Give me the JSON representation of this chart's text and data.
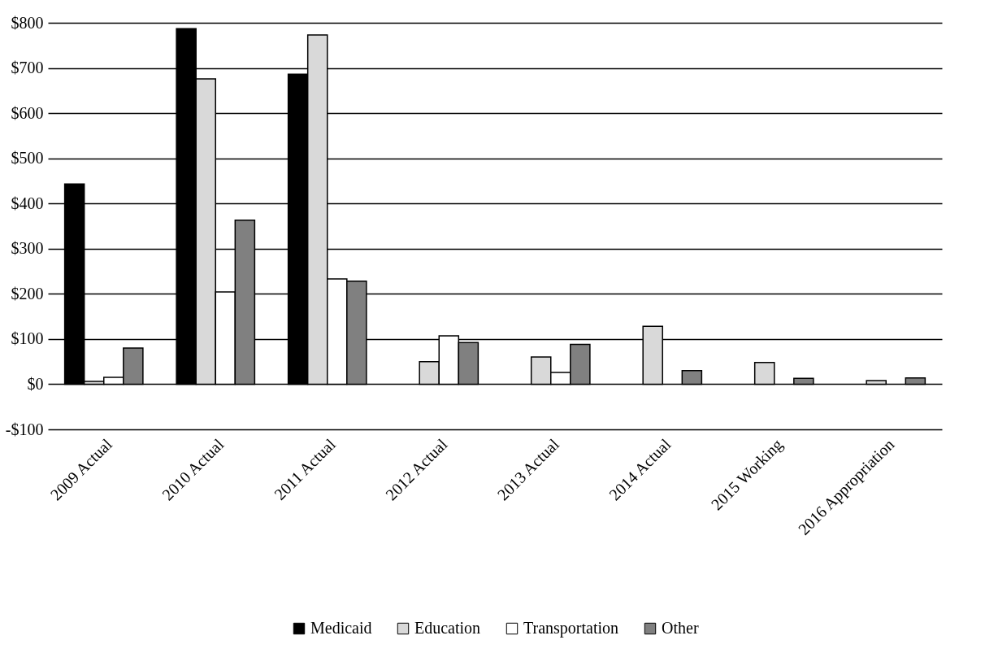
{
  "chart_data": {
    "type": "bar",
    "categories": [
      "2009 Actual",
      "2010 Actual",
      "2011 Actual",
      "2012 Actual",
      "2013 Actual",
      "2014 Actual",
      "2015 Working",
      "2016 Appropriation"
    ],
    "series": [
      {
        "name": "Medicaid",
        "color": "#000000",
        "values": [
          443,
          787,
          686,
          null,
          null,
          null,
          null,
          null
        ]
      },
      {
        "name": "Education",
        "color": "#d9d9d9",
        "values": [
          6,
          676,
          773,
          50,
          60,
          128,
          48,
          8
        ]
      },
      {
        "name": "Transportation",
        "color": "#ffffff",
        "values": [
          15,
          204,
          233,
          107,
          26,
          null,
          null,
          null
        ]
      },
      {
        "name": "Other",
        "color": "#808080",
        "values": [
          80,
          363,
          228,
          92,
          88,
          30,
          13,
          14
        ]
      }
    ],
    "ylim": [
      -100,
      800
    ],
    "yticks": [
      {
        "value": -100,
        "label": "-$100"
      },
      {
        "value": 0,
        "label": "$0"
      },
      {
        "value": 100,
        "label": "$100"
      },
      {
        "value": 200,
        "label": "$200"
      },
      {
        "value": 300,
        "label": "$300"
      },
      {
        "value": 400,
        "label": "$400"
      },
      {
        "value": 500,
        "label": "$500"
      },
      {
        "value": 600,
        "label": "$600"
      },
      {
        "value": 700,
        "label": "$700"
      },
      {
        "value": 800,
        "label": "$800"
      }
    ],
    "grid": "y",
    "legend": "bottom"
  }
}
